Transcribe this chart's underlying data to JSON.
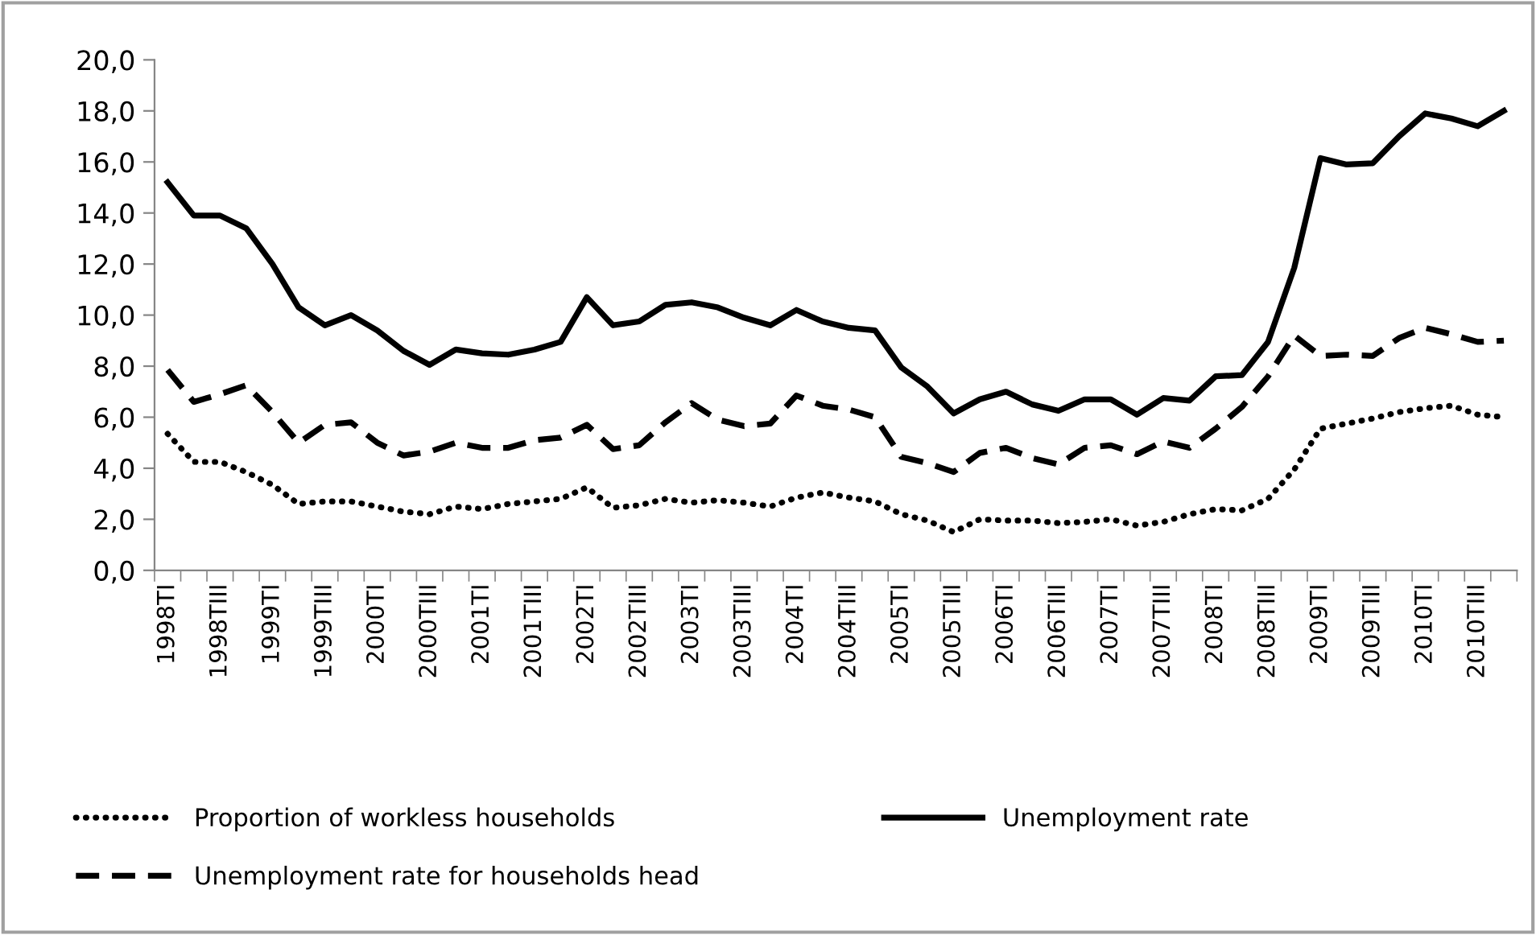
{
  "chart_data": {
    "type": "line",
    "categories": [
      "1998TI",
      null,
      "1998TIII",
      null,
      "1999TI",
      null,
      "1999TIII",
      null,
      "2000TI",
      null,
      "2000TIII",
      null,
      "2001TI",
      null,
      "2001TIII",
      null,
      "2002TI",
      null,
      "2002TIII",
      null,
      "2003TI",
      null,
      "2003TIII",
      null,
      "2004TI",
      null,
      "2004TIII",
      null,
      "2005TI",
      null,
      "2005TIII",
      null,
      "2006TI",
      null,
      "2006TIII",
      null,
      "2007TI",
      null,
      "2007TIII",
      null,
      "2008TI",
      null,
      "2008TIII",
      null,
      "2009TI",
      null,
      "2009TIII",
      null,
      "2010TI",
      null,
      "2010TIII",
      null
    ],
    "series": [
      {
        "name": "Proportion of workless households",
        "color": "#000000",
        "line_style": "dotted",
        "values": [
          5.35,
          4.25,
          4.25,
          3.85,
          3.35,
          2.6,
          2.7,
          2.7,
          2.5,
          2.3,
          2.2,
          2.5,
          2.4,
          2.6,
          2.7,
          2.8,
          3.25,
          2.45,
          2.55,
          2.8,
          2.65,
          2.75,
          2.65,
          2.5,
          2.85,
          3.05,
          2.85,
          2.7,
          2.2,
          1.95,
          1.5,
          2.0,
          1.95,
          1.95,
          1.85,
          1.9,
          2.0,
          1.75,
          1.9,
          2.2,
          2.4,
          2.35,
          2.8,
          3.95,
          5.55,
          5.75,
          5.95,
          6.2,
          6.35,
          6.45,
          6.1,
          6.0
        ]
      },
      {
        "name": "Unemployment rate",
        "color": "#000000",
        "line_style": "solid",
        "values": [
          15.2,
          13.9,
          13.9,
          13.4,
          12.0,
          10.3,
          9.6,
          10.0,
          9.4,
          8.6,
          8.05,
          8.65,
          8.5,
          8.45,
          8.65,
          8.95,
          10.7,
          9.6,
          9.75,
          10.4,
          10.5,
          10.3,
          9.9,
          9.6,
          10.2,
          9.75,
          9.5,
          9.4,
          7.95,
          7.2,
          6.15,
          6.7,
          7.0,
          6.5,
          6.25,
          6.7,
          6.7,
          6.1,
          6.75,
          6.65,
          7.6,
          7.65,
          8.95,
          11.85,
          16.15,
          15.9,
          15.95,
          17.0,
          17.9,
          17.7,
          17.4,
          18.0
        ]
      },
      {
        "name": "Unemployment rate for households head",
        "color": "#000000",
        "line_style": "dashed",
        "values": [
          7.85,
          6.6,
          6.9,
          7.25,
          6.2,
          5.0,
          5.7,
          5.8,
          5.0,
          4.5,
          4.65,
          5.0,
          4.8,
          4.8,
          5.1,
          5.2,
          5.7,
          4.75,
          4.9,
          5.8,
          6.55,
          5.9,
          5.65,
          5.75,
          6.85,
          6.45,
          6.3,
          6.0,
          4.45,
          4.2,
          3.85,
          4.6,
          4.8,
          4.4,
          4.15,
          4.8,
          4.9,
          4.55,
          5.05,
          4.8,
          5.55,
          6.4,
          7.6,
          9.2,
          8.4,
          8.45,
          8.4,
          9.1,
          9.5,
          9.25,
          8.95,
          9.0
        ]
      }
    ],
    "ylim": [
      0,
      20
    ],
    "yticks": [
      {
        "value": 0,
        "label": "0,0"
      },
      {
        "value": 2,
        "label": "2,0"
      },
      {
        "value": 4,
        "label": "4,0"
      },
      {
        "value": 6,
        "label": "6,0"
      },
      {
        "value": 8,
        "label": "8,0"
      },
      {
        "value": 10,
        "label": "10,0"
      },
      {
        "value": 12,
        "label": "12,0"
      },
      {
        "value": 14,
        "label": "14,0"
      },
      {
        "value": 16,
        "label": "16,0"
      },
      {
        "value": 18,
        "label": "18,0"
      },
      {
        "value": 20,
        "label": "20,0"
      }
    ],
    "grid": false,
    "legend": "bottom",
    "marker": "none"
  }
}
